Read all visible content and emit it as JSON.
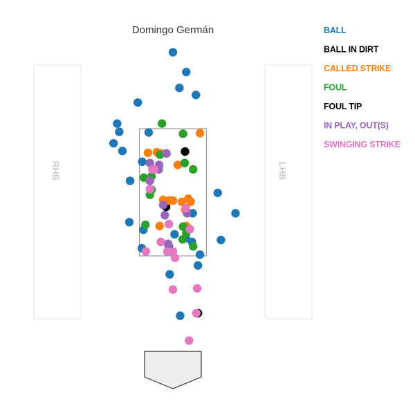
{
  "chart_data": {
    "type": "scatter",
    "title": "Domingo Germán",
    "batter_boxes": {
      "left": "RHB",
      "right": "LHB"
    },
    "legend": [
      {
        "name": "BALL",
        "color": "#1f77b4"
      },
      {
        "name": "BALL IN DIRT",
        "color": "#000000"
      },
      {
        "name": "CALLED STRIKE",
        "color": "#ff7f0e"
      },
      {
        "name": "FOUL",
        "color": "#2ca02c"
      },
      {
        "name": "FOUL TIP",
        "color": "#000000"
      },
      {
        "name": "IN PLAY, OUT(S)",
        "color": "#9467bd"
      },
      {
        "name": "SWINGING STRIKE",
        "color": "#e377c2"
      }
    ],
    "legend_placement": "top-right",
    "x_range": [
      -2.5,
      2.5
    ],
    "y_range": [
      -0.5,
      5.0
    ],
    "strike_zone": {
      "x": [
        -0.83,
        0.83
      ],
      "y": [
        1.5,
        3.5
      ]
    },
    "series": [
      {
        "name": "BALL",
        "color": "#1f77b4",
        "points": [
          [
            0.0,
            4.7
          ],
          [
            0.33,
            4.39
          ],
          [
            0.16,
            4.14
          ],
          [
            0.57,
            4.03
          ],
          [
            -0.87,
            3.91
          ],
          [
            -1.38,
            3.58
          ],
          [
            -1.33,
            3.45
          ],
          [
            -1.47,
            3.27
          ],
          [
            -1.25,
            3.15
          ],
          [
            -0.6,
            3.44
          ],
          [
            -0.76,
            2.98
          ],
          [
            -1.06,
            2.68
          ],
          [
            1.11,
            2.49
          ],
          [
            1.55,
            2.17
          ],
          [
            -1.08,
            2.03
          ],
          [
            -0.73,
            1.91
          ],
          [
            0.49,
            2.17
          ],
          [
            0.04,
            1.84
          ],
          [
            0.32,
            1.78
          ],
          [
            0.47,
            1.72
          ],
          [
            1.19,
            1.75
          ],
          [
            -0.77,
            1.62
          ],
          [
            -0.1,
            1.65
          ],
          [
            -0.02,
            1.57
          ],
          [
            0.67,
            1.52
          ],
          [
            0.62,
            1.35
          ],
          [
            -0.08,
            1.21
          ],
          [
            0.18,
            0.56
          ]
        ]
      },
      {
        "name": "BALL IN DIRT",
        "color": "#000000",
        "points": [
          [
            0.3,
            3.14
          ],
          [
            -0.17,
            2.27
          ],
          [
            0.62,
            0.6
          ]
        ]
      },
      {
        "name": "CALLED STRIKE",
        "color": "#ff7f0e",
        "points": [
          [
            0.67,
            3.43
          ],
          [
            -0.62,
            3.12
          ],
          [
            -0.29,
            3.11
          ],
          [
            -0.16,
            3.11
          ],
          [
            -0.4,
            3.13
          ],
          [
            0.12,
            2.93
          ],
          [
            0.38,
            2.4
          ],
          [
            0.44,
            2.35
          ],
          [
            -0.24,
            2.38
          ],
          [
            -0.09,
            2.37
          ],
          [
            0.0,
            2.37
          ],
          [
            0.22,
            2.35
          ],
          [
            0.3,
            2.23
          ],
          [
            0.33,
            1.97
          ],
          [
            -0.33,
            1.97
          ]
        ]
      },
      {
        "name": "FOUL",
        "color": "#2ca02c",
        "points": [
          [
            -0.27,
            3.58
          ],
          [
            0.25,
            3.42
          ],
          [
            -0.32,
            3.09
          ],
          [
            0.29,
            2.96
          ],
          [
            0.5,
            2.86
          ],
          [
            -0.72,
            2.73
          ],
          [
            -0.53,
            2.75
          ],
          [
            -0.53,
            2.54
          ],
          [
            -0.57,
            2.46
          ],
          [
            -0.68,
            1.99
          ],
          [
            0.25,
            1.96
          ],
          [
            0.33,
            1.86
          ],
          [
            0.24,
            1.76
          ],
          [
            0.5,
            1.65
          ]
        ]
      },
      {
        "name": "IN PLAY, OUT(S)",
        "color": "#9467bd",
        "points": [
          [
            -0.16,
            3.11
          ],
          [
            -0.57,
            2.96
          ],
          [
            -0.34,
            2.93
          ],
          [
            -0.35,
            2.86
          ],
          [
            -0.57,
            2.68
          ],
          [
            -0.24,
            2.3
          ],
          [
            0.35,
            2.17
          ],
          [
            -0.2,
            2.14
          ],
          [
            -0.12,
            1.69
          ]
        ]
      },
      {
        "name": "SWINGING STRIKE",
        "color": "#e377c2",
        "points": [
          [
            -0.51,
            2.86
          ],
          [
            -0.46,
            2.86
          ],
          [
            -0.57,
            2.55
          ],
          [
            0.32,
            2.25
          ],
          [
            -0.1,
            2.0
          ],
          [
            0.42,
            1.92
          ],
          [
            -0.3,
            1.72
          ],
          [
            -0.14,
            1.57
          ],
          [
            -0.67,
            1.57
          ],
          [
            0.0,
            1.57
          ],
          [
            0.05,
            1.47
          ],
          [
            0.6,
            0.99
          ],
          [
            0.0,
            0.97
          ],
          [
            0.58,
            0.6
          ],
          [
            0.4,
            0.17
          ]
        ]
      }
    ]
  }
}
